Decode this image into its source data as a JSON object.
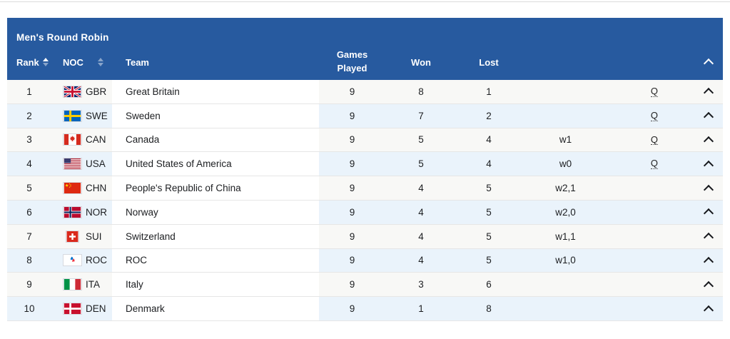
{
  "page": {
    "top_divider_color": "#dbdbdb",
    "background": "#ffffff"
  },
  "table": {
    "title": "Men's Round Robin",
    "header": {
      "columns": {
        "rank": "Rank",
        "noc": "NOC",
        "team": "Team",
        "games_played": "Games Played",
        "won": "Won",
        "lost": "Lost"
      },
      "sort_icons": [
        "rank-sort",
        "noc-sort"
      ],
      "collapse_icon": "chevron-up"
    },
    "colors": {
      "header_bg": "#275a9f",
      "header_text": "#ffffff",
      "row_odd_bg": "#f8f8f6",
      "row_even_bg": "#eaf3fb",
      "team_column_bg": "#ffffff",
      "row_border": "#e6e6e6",
      "text": "#1c1e21"
    },
    "rows": [
      {
        "rank": "1",
        "noc": "GBR",
        "team": "Great Britain",
        "games_played": "9",
        "won": "8",
        "lost": "1",
        "tiebreak": "",
        "qualified": "Q"
      },
      {
        "rank": "2",
        "noc": "SWE",
        "team": "Sweden",
        "games_played": "9",
        "won": "7",
        "lost": "2",
        "tiebreak": "",
        "qualified": "Q"
      },
      {
        "rank": "3",
        "noc": "CAN",
        "team": "Canada",
        "games_played": "9",
        "won": "5",
        "lost": "4",
        "tiebreak": "w1",
        "qualified": "Q"
      },
      {
        "rank": "4",
        "noc": "USA",
        "team": "United States of America",
        "games_played": "9",
        "won": "5",
        "lost": "4",
        "tiebreak": "w0",
        "qualified": "Q"
      },
      {
        "rank": "5",
        "noc": "CHN",
        "team": "People's Republic of China",
        "games_played": "9",
        "won": "4",
        "lost": "5",
        "tiebreak": "w2,1",
        "qualified": ""
      },
      {
        "rank": "6",
        "noc": "NOR",
        "team": "Norway",
        "games_played": "9",
        "won": "4",
        "lost": "5",
        "tiebreak": "w2,0",
        "qualified": ""
      },
      {
        "rank": "7",
        "noc": "SUI",
        "team": "Switzerland",
        "games_played": "9",
        "won": "4",
        "lost": "5",
        "tiebreak": "w1,1",
        "qualified": ""
      },
      {
        "rank": "8",
        "noc": "ROC",
        "team": "ROC",
        "games_played": "9",
        "won": "4",
        "lost": "5",
        "tiebreak": "w1,0",
        "qualified": ""
      },
      {
        "rank": "9",
        "noc": "ITA",
        "team": "Italy",
        "games_played": "9",
        "won": "3",
        "lost": "6",
        "tiebreak": "",
        "qualified": ""
      },
      {
        "rank": "10",
        "noc": "DEN",
        "team": "Denmark",
        "games_played": "9",
        "won": "1",
        "lost": "8",
        "tiebreak": "",
        "qualified": ""
      }
    ]
  }
}
